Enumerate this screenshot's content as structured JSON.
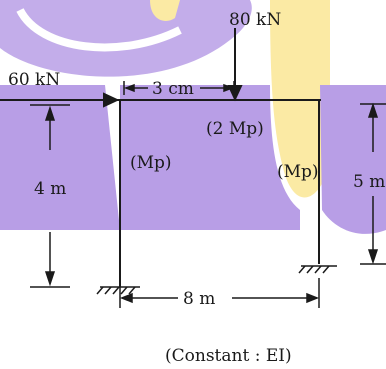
{
  "labels": {
    "load_top": "80 kN",
    "load_left": "60 kN",
    "dim_top": "3 cm",
    "beam_moment": "(2 Mp)",
    "left_col_moment": "(Mp)",
    "right_col_moment": "(Mp)",
    "left_height": "4 m",
    "right_height": "5 m",
    "span": "8 m",
    "note": "(Constant : EI)"
  },
  "colors": {
    "watermark_purple": "#b89ee6",
    "watermark_yellow": "#fbeaa4",
    "ink": "#1a1a1a"
  }
}
